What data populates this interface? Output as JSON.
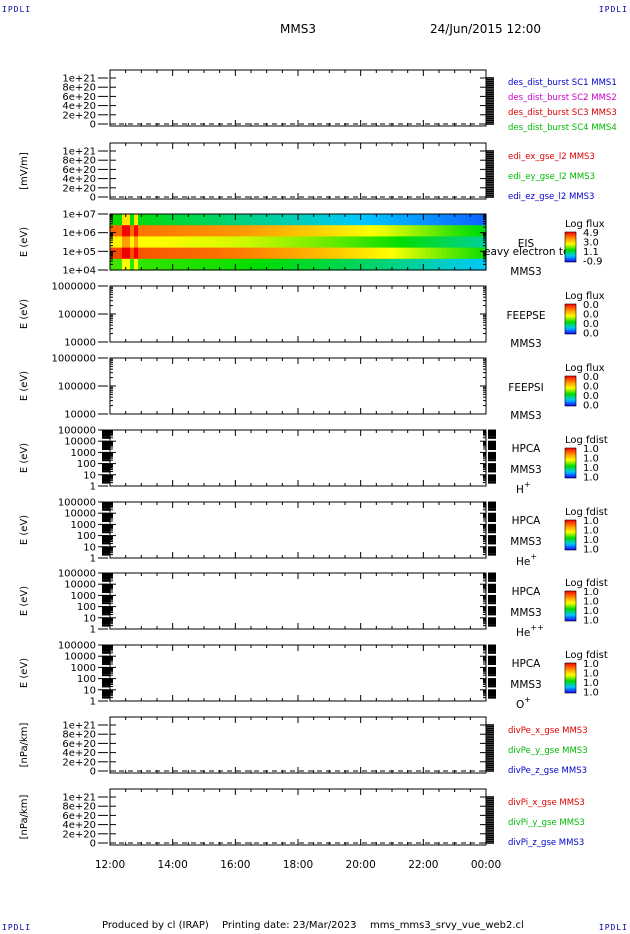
{
  "corner_label": "IPDLI",
  "header": {
    "spacecraft": "MMS3",
    "date": "24/Jun/2015 12:00"
  },
  "footer": {
    "produced": "Produced by cl (IRAP)",
    "printing": "Printing date: 23/Mar/2023",
    "script": "mms_mms3_srvy_vue_web2.cl"
  },
  "chart_data": {
    "type": "line",
    "x_axis": {
      "ticks": [
        "12:00",
        "14:00",
        "16:00",
        "18:00",
        "20:00",
        "22:00",
        "00:00"
      ],
      "range_hours": [
        12,
        24
      ]
    },
    "panels": [
      {
        "id": "dist-burst",
        "type": "line",
        "ylabel": "",
        "yticks": [
          "0",
          "2e+20",
          "4e+20",
          "6e+20",
          "8e+20",
          "1e+21"
        ],
        "ylim": [
          0,
          1e+21
        ],
        "zero_dashed": true,
        "legend": [
          {
            "text": "des_dist_burst SC1 MMS1",
            "color": "#0000cc"
          },
          {
            "text": "des_dist_burst SC2 MMS2",
            "color": "#cc00cc"
          },
          {
            "text": "des_dist_burst SC3 MMS3",
            "color": "#dd0000"
          },
          {
            "text": "des_dist_burst SC4 MMS4",
            "color": "#00bb00"
          }
        ],
        "series": []
      },
      {
        "id": "edi-e",
        "type": "line",
        "ylabel": "[mV/m]",
        "yticks": [
          "0",
          "2e+20",
          "4e+20",
          "6e+20",
          "8e+20",
          "1e+21"
        ],
        "ylim": [
          0,
          1e+21
        ],
        "zero_dashed": true,
        "legend": [
          {
            "text": "edi_ex_gse_l2 MMS3",
            "color": "#dd0000"
          },
          {
            "text": "edi_ey_gse_l2 MMS3",
            "color": "#00bb00"
          },
          {
            "text": "edi_ez_gse_l2 MMS3",
            "color": "#0000cc"
          }
        ],
        "series": []
      },
      {
        "id": "eis-spectrogram",
        "type": "heatmap",
        "ylabel": "E (eV)",
        "yticks": [
          "1e+04",
          "1e+05",
          "1e+06",
          "1e+07"
        ],
        "side_labels": [
          "EIS",
          "MMS3"
        ],
        "overlay_text": "eavy electron tc",
        "colorbar": {
          "title": "Log flux",
          "values": [
            "4.9",
            "3.0",
            "1.1",
            "-0.9"
          ]
        },
        "band_levels": [
          0.35,
          0.85,
          0.62,
          0.9,
          0.45
        ],
        "decay_profile": [
          1.0,
          0.97,
          0.95,
          0.93,
          0.9,
          0.85,
          0.8,
          0.74,
          0.68,
          0.6,
          0.52,
          0.45
        ],
        "bright_stripes_hours": [
          12.45,
          12.75
        ]
      },
      {
        "id": "feepse",
        "type": "heatmap",
        "ylabel": "E (eV)",
        "yticks": [
          "10000",
          "100000",
          "1000000"
        ],
        "side_labels": [
          "FEEPSE",
          "MMS3"
        ],
        "colorbar": {
          "title": "Log flux",
          "values": [
            "0.0",
            "0.0",
            "0.0",
            "0.0"
          ]
        }
      },
      {
        "id": "feepsi",
        "type": "heatmap",
        "ylabel": "E (eV)",
        "yticks": [
          "10000",
          "100000",
          "1000000"
        ],
        "side_labels": [
          "FEEPSI",
          "MMS3"
        ],
        "colorbar": {
          "title": "Log flux",
          "values": [
            "0.0",
            "0.0",
            "0.0",
            "0.0"
          ]
        }
      },
      {
        "id": "hpca-h",
        "type": "heatmap",
        "ylabel": "E (eV)",
        "yticks": [
          "1",
          "10",
          "100",
          "1000",
          "10000",
          "100000"
        ],
        "side_labels": [
          "HPCA",
          "MMS3"
        ],
        "species": "H",
        "species_sup": "+",
        "colorbar": {
          "title": "Log fdist",
          "values": [
            "1.0",
            "1.0",
            "1.0",
            "1.0"
          ]
        }
      },
      {
        "id": "hpca-he1",
        "type": "heatmap",
        "ylabel": "E (eV)",
        "yticks": [
          "1",
          "10",
          "100",
          "1000",
          "10000",
          "100000"
        ],
        "side_labels": [
          "HPCA",
          "MMS3"
        ],
        "species": "He",
        "species_sup": "+",
        "colorbar": {
          "title": "Log fdist",
          "values": [
            "1.0",
            "1.0",
            "1.0",
            "1.0"
          ]
        }
      },
      {
        "id": "hpca-he2",
        "type": "heatmap",
        "ylabel": "E (eV)",
        "yticks": [
          "1",
          "10",
          "100",
          "1000",
          "10000",
          "100000"
        ],
        "side_labels": [
          "HPCA",
          "MMS3"
        ],
        "species": "He",
        "species_sup": "++",
        "colorbar": {
          "title": "Log fdist",
          "values": [
            "1.0",
            "1.0",
            "1.0",
            "1.0"
          ]
        }
      },
      {
        "id": "hpca-o",
        "type": "heatmap",
        "ylabel": "E (eV)",
        "yticks": [
          "1",
          "10",
          "100",
          "1000",
          "10000",
          "100000"
        ],
        "side_labels": [
          "HPCA",
          "MMS3"
        ],
        "species": "O",
        "species_sup": "+",
        "colorbar": {
          "title": "Log fdist",
          "values": [
            "1.0",
            "1.0",
            "1.0",
            "1.0"
          ]
        }
      },
      {
        "id": "divpe",
        "type": "line",
        "ylabel": "[nPa/km]",
        "yticks": [
          "0",
          "2e+20",
          "4e+20",
          "6e+20",
          "8e+20",
          "1e+21"
        ],
        "ylim": [
          0,
          1e+21
        ],
        "zero_dashed": true,
        "legend": [
          {
            "text": "divPe_x_gse MMS3",
            "color": "#dd0000"
          },
          {
            "text": "divPe_y_gse MMS3",
            "color": "#00bb00"
          },
          {
            "text": "divPe_z_gse MMS3",
            "color": "#0000cc"
          }
        ],
        "series": []
      },
      {
        "id": "divpi",
        "type": "line",
        "ylabel": "[nPa/km]",
        "yticks": [
          "0",
          "2e+20",
          "4e+20",
          "6e+20",
          "8e+20",
          "1e+21"
        ],
        "ylim": [
          0,
          1e+21
        ],
        "zero_dashed": true,
        "legend": [
          {
            "text": "divPi_x_gse MMS3",
            "color": "#dd0000"
          },
          {
            "text": "divPi_y_gse MMS3",
            "color": "#00bb00"
          },
          {
            "text": "divPi_z_gse MMS3",
            "color": "#0000cc"
          }
        ],
        "series": []
      }
    ]
  }
}
